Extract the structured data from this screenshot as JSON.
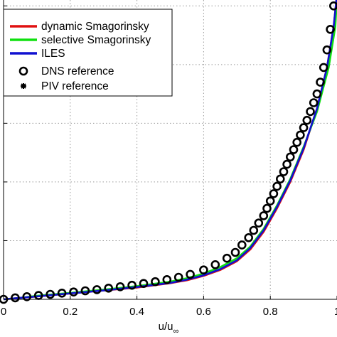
{
  "chart_data": {
    "type": "line",
    "title": "",
    "xlabel": "u/u",
    "xlabel_sub": "∞",
    "ylabel": "",
    "xlim": [
      0,
      1
    ],
    "ylim": [
      0,
      1.1
    ],
    "xticks": [
      "0",
      "0.2",
      "0.4",
      "0.6",
      "0.8",
      "1"
    ],
    "xtick_values": [
      0,
      0.2,
      0.4,
      0.6,
      0.8,
      1.0
    ],
    "ytick_values": [
      0,
      0.2,
      0.4,
      0.6,
      0.8,
      1.0
    ],
    "grid": true,
    "legend_position": "top-left",
    "series": [
      {
        "name": "dynamic Smagorinsky",
        "style": "line",
        "color": "#e01010",
        "x": [
          0.0,
          0.05,
          0.1,
          0.2,
          0.3,
          0.4,
          0.5,
          0.55,
          0.6,
          0.65,
          0.7,
          0.74,
          0.78,
          0.82,
          0.86,
          0.9,
          0.94,
          0.97,
          0.99,
          1.0
        ],
        "y": [
          0.0,
          0.005,
          0.01,
          0.02,
          0.03,
          0.04,
          0.055,
          0.065,
          0.08,
          0.1,
          0.13,
          0.17,
          0.23,
          0.31,
          0.4,
          0.51,
          0.65,
          0.79,
          0.93,
          1.04
        ]
      },
      {
        "name": "selective Smagorinsky",
        "style": "line",
        "color": "#10e010",
        "x": [
          0.0,
          0.05,
          0.1,
          0.2,
          0.3,
          0.4,
          0.5,
          0.55,
          0.6,
          0.65,
          0.7,
          0.74,
          0.78,
          0.82,
          0.86,
          0.9,
          0.94,
          0.975,
          0.995,
          1.0
        ],
        "y": [
          0.0,
          0.005,
          0.012,
          0.022,
          0.033,
          0.045,
          0.06,
          0.072,
          0.088,
          0.11,
          0.14,
          0.18,
          0.24,
          0.32,
          0.41,
          0.52,
          0.64,
          0.79,
          0.93,
          1.03
        ]
      },
      {
        "name": "ILES",
        "style": "line",
        "color": "#1010d0",
        "x": [
          0.0,
          0.05,
          0.1,
          0.2,
          0.3,
          0.4,
          0.5,
          0.55,
          0.6,
          0.65,
          0.7,
          0.74,
          0.78,
          0.82,
          0.86,
          0.9,
          0.94,
          0.97,
          0.99,
          1.0
        ],
        "y": [
          0.0,
          0.005,
          0.01,
          0.02,
          0.03,
          0.042,
          0.056,
          0.067,
          0.082,
          0.103,
          0.133,
          0.175,
          0.235,
          0.315,
          0.405,
          0.515,
          0.65,
          0.79,
          0.93,
          1.04
        ]
      },
      {
        "name": "DNS reference",
        "style": "open-circle",
        "color": "#000000",
        "x": [
          0.0,
          0.035,
          0.07,
          0.105,
          0.14,
          0.175,
          0.21,
          0.245,
          0.28,
          0.315,
          0.35,
          0.385,
          0.42,
          0.455,
          0.49,
          0.525,
          0.56,
          0.6,
          0.635,
          0.67,
          0.695,
          0.715,
          0.735,
          0.75,
          0.765,
          0.78,
          0.79,
          0.8,
          0.81,
          0.82,
          0.83,
          0.84,
          0.85,
          0.86,
          0.87,
          0.88,
          0.89,
          0.9,
          0.91,
          0.92,
          0.93,
          0.94,
          0.95,
          0.96,
          0.97,
          0.98,
          0.99
        ],
        "y": [
          0.0,
          0.005,
          0.009,
          0.013,
          0.017,
          0.021,
          0.025,
          0.029,
          0.033,
          0.038,
          0.043,
          0.048,
          0.054,
          0.06,
          0.067,
          0.075,
          0.085,
          0.1,
          0.118,
          0.14,
          0.16,
          0.185,
          0.21,
          0.235,
          0.26,
          0.285,
          0.31,
          0.335,
          0.36,
          0.385,
          0.41,
          0.435,
          0.46,
          0.485,
          0.51,
          0.535,
          0.56,
          0.585,
          0.61,
          0.64,
          0.67,
          0.7,
          0.74,
          0.79,
          0.85,
          0.92,
          1.0
        ]
      },
      {
        "name": "PIV reference",
        "style": "asterisk",
        "color": "#000000",
        "x": [],
        "y": []
      }
    ]
  }
}
